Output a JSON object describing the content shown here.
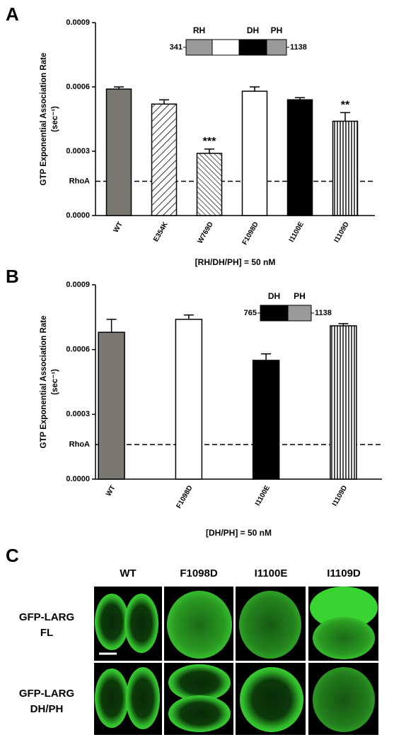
{
  "chart_data": [
    {
      "type": "bar",
      "panel": "A",
      "ylabel": [
        "GTP Exponential Association Rate",
        "(sec⁻¹)"
      ],
      "xlabel": "[RH/DH/PH] = 50 nM",
      "categories": [
        "WT",
        "E354K",
        "W769D",
        "F1098D",
        "I1100E",
        "I1109D"
      ],
      "values": [
        0.00059,
        0.00052,
        0.00029,
        0.00058,
        0.00054,
        0.00044
      ],
      "errors": [
        1e-05,
        2e-05,
        2e-05,
        2e-05,
        1e-05,
        4e-05
      ],
      "colors": [
        "#7a7873",
        "#ffffff",
        "#ffffff",
        "#ffffff",
        "#000000",
        "#ffffff"
      ],
      "patterns": [
        "solid",
        "diag-right",
        "diag-left",
        "solid",
        "solid",
        "vertical"
      ],
      "annotations": [
        null,
        null,
        "***",
        null,
        null,
        "**"
      ],
      "reference": {
        "label": "RhoA",
        "value": 0.00016
      },
      "inset": {
        "start": "341",
        "end": "1138",
        "domains": [
          "RH",
          "DH",
          "PH"
        ]
      },
      "ylim": [
        0,
        0.0009
      ],
      "yticks": [
        {
          "value": 0,
          "label": "0.0000"
        },
        0.0003,
        0.0006,
        0.0009
      ]
    },
    {
      "type": "bar",
      "panel": "B",
      "ylabel": [
        "GTP Exponential Association Rate",
        "(sec⁻¹)"
      ],
      "xlabel": "[DH/PH] = 50 nM",
      "categories": [
        "WT",
        "F1098D",
        "I1100E",
        "I1109D"
      ],
      "values": [
        0.00068,
        0.00074,
        0.00055,
        0.00071
      ],
      "errors": [
        6e-05,
        2e-05,
        3e-05,
        1e-05
      ],
      "colors": [
        "#7a7873",
        "#ffffff",
        "#000000",
        "#ffffff"
      ],
      "patterns": [
        "solid",
        "solid",
        "solid",
        "vertical"
      ],
      "reference": {
        "label": "RhoA",
        "value": 0.00016
      },
      "inset": {
        "start": "765",
        "end": "1138",
        "domains": [
          "DH",
          "PH"
        ]
      },
      "ylim": [
        0,
        0.0009
      ],
      "yticks": [
        {
          "value": 0,
          "label": "0.0000"
        },
        0.0003,
        0.0006,
        0.0009
      ]
    }
  ],
  "panel_c": {
    "panel": "C",
    "columns": [
      "WT",
      "F1098D",
      "I1100E",
      "I1109D"
    ],
    "rows": [
      [
        "GFP-LARG",
        "FL"
      ],
      [
        "GFP-LARG",
        "DH/PH"
      ]
    ]
  }
}
